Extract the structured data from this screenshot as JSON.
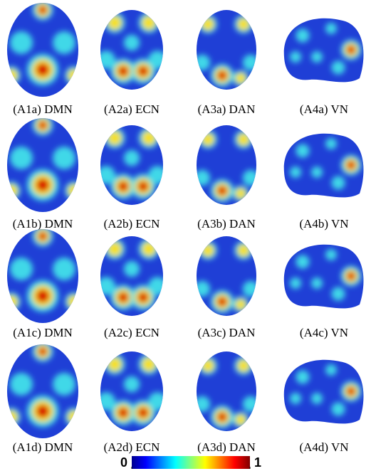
{
  "captions": [
    [
      "(A1a) DMN",
      "(A2a) ECN",
      "(A3a) DAN",
      "(A4a) VN"
    ],
    [
      "(A1b) DMN",
      "(A2b) ECN",
      "(A3b) DAN",
      "(A4b) VN"
    ],
    [
      "(A1c) DMN",
      "(A2c) ECN",
      "(A3c) DAN",
      "(A4c) VN"
    ],
    [
      "(A1d) DMN",
      "(A2d) ECN",
      "(A3d) DAN",
      "(A4d) VN"
    ]
  ],
  "colorbar": {
    "ticks": [
      0,
      1
    ]
  }
}
